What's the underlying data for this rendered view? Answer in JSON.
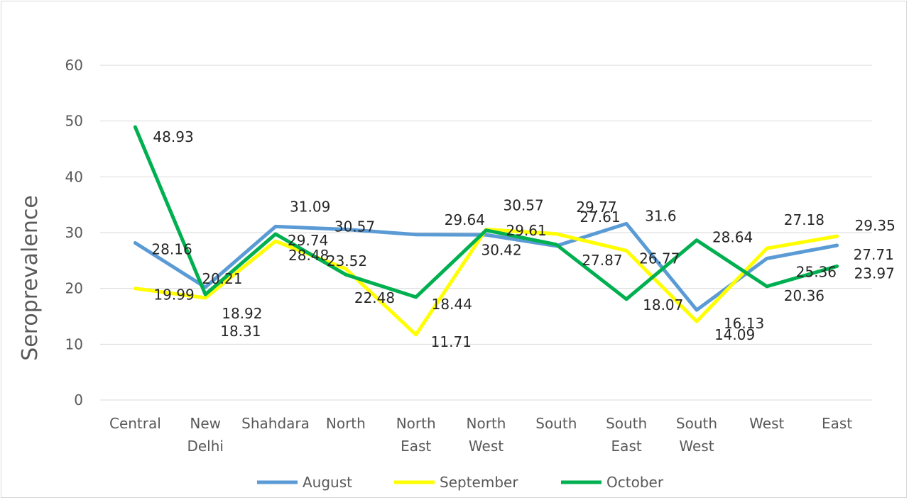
{
  "chart_data": {
    "type": "line",
    "ylabel": "Seroprevalence",
    "xlabel": "",
    "ylim": [
      0,
      60
    ],
    "yticks": [
      0,
      10,
      20,
      30,
      40,
      50,
      60
    ],
    "grid": true,
    "legend_position": "bottom",
    "categories": [
      [
        "Central"
      ],
      [
        "New",
        "Delhi"
      ],
      [
        "Shahdara"
      ],
      [
        "North"
      ],
      [
        "North",
        "East"
      ],
      [
        "North",
        "West"
      ],
      [
        "South"
      ],
      [
        "South",
        "East"
      ],
      [
        "South",
        "West"
      ],
      [
        "West"
      ],
      [
        "East"
      ]
    ],
    "series": [
      {
        "name": "August",
        "color": "#5b9bd5",
        "values": [
          28.16,
          20.21,
          31.09,
          30.57,
          29.64,
          29.61,
          27.61,
          31.6,
          16.13,
          25.36,
          27.71
        ]
      },
      {
        "name": "September",
        "color": "#ffff00",
        "values": [
          19.99,
          18.31,
          28.48,
          23.52,
          11.71,
          30.57,
          29.77,
          26.77,
          14.09,
          27.18,
          29.35
        ]
      },
      {
        "name": "October",
        "color": "#00b050",
        "values": [
          48.93,
          18.92,
          29.74,
          22.48,
          18.44,
          30.42,
          27.87,
          18.07,
          28.64,
          20.36,
          23.97
        ]
      }
    ]
  }
}
